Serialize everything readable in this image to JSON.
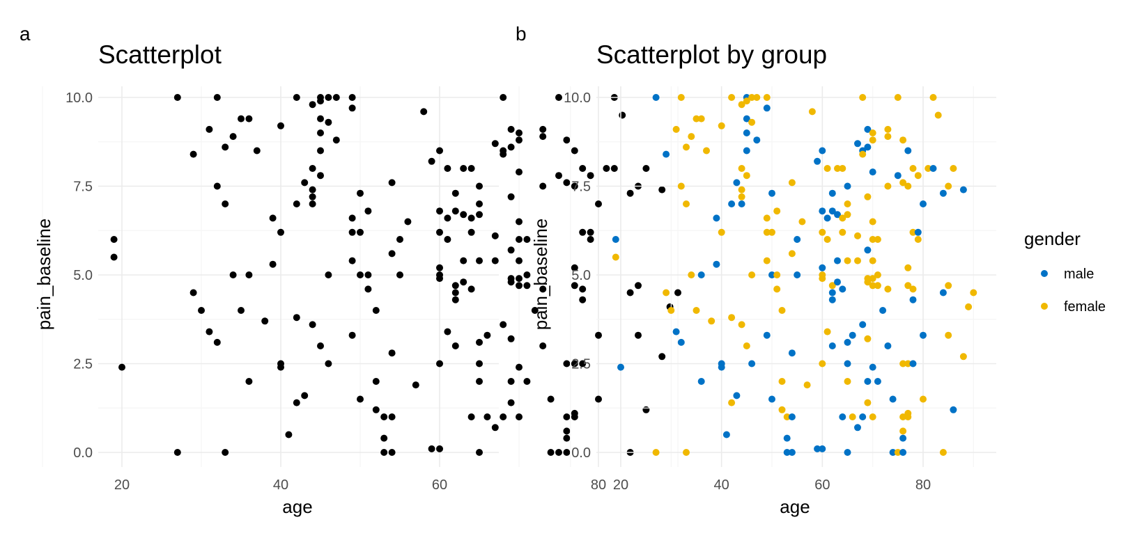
{
  "panels": {
    "a": {
      "tag": "a",
      "title": "Scatterplot"
    },
    "b": {
      "tag": "b",
      "title": "Scatterplot by group"
    }
  },
  "legend": {
    "title": "gender",
    "entries": [
      {
        "label": "male",
        "color": "#0072C6"
      },
      {
        "label": "female",
        "color": "#F0B800"
      }
    ]
  },
  "chart_data": [
    {
      "type": "scatter",
      "title": "Scatterplot",
      "xlabel": "age",
      "ylabel": "pain_baseline",
      "xlim": [
        14,
        92
      ],
      "ylim": [
        -0.6,
        10.6
      ],
      "xticks": [
        20,
        40,
        60,
        80
      ],
      "yticks": [
        0.0,
        2.5,
        5.0,
        7.5,
        10.0
      ],
      "xtick_labels": [
        "20",
        "40",
        "60",
        "80"
      ],
      "ytick_labels": [
        "0.0",
        "2.5",
        "5.0",
        "7.5",
        "10.0"
      ],
      "grid": true,
      "point_color": "#000000",
      "points": [
        [
          19,
          6.0,
          "m"
        ],
        [
          19,
          5.5,
          "f"
        ],
        [
          20,
          2.4,
          "m"
        ],
        [
          27,
          10.0,
          "m"
        ],
        [
          27,
          0.0,
          "f"
        ],
        [
          29,
          8.4,
          "m"
        ],
        [
          29,
          4.5,
          "f"
        ],
        [
          30,
          4.0,
          "f"
        ],
        [
          31,
          9.1,
          "f"
        ],
        [
          31,
          3.4,
          "m"
        ],
        [
          32,
          10.0,
          "f"
        ],
        [
          32,
          7.5,
          "f"
        ],
        [
          32,
          3.1,
          "m"
        ],
        [
          33,
          8.6,
          "f"
        ],
        [
          33,
          7.0,
          "f"
        ],
        [
          33,
          0.0,
          "f"
        ],
        [
          34,
          8.9,
          "f"
        ],
        [
          34,
          5.0,
          "f"
        ],
        [
          35,
          9.4,
          "f"
        ],
        [
          35,
          4.0,
          "f"
        ],
        [
          36,
          9.4,
          "f"
        ],
        [
          36,
          5.0,
          "m"
        ],
        [
          36,
          2.0,
          "m"
        ],
        [
          37,
          8.5,
          "f"
        ],
        [
          38,
          3.7,
          "f"
        ],
        [
          39,
          6.6,
          "m"
        ],
        [
          39,
          5.3,
          "m"
        ],
        [
          40,
          9.2,
          "f"
        ],
        [
          40,
          6.2,
          "f"
        ],
        [
          40,
          2.5,
          "m"
        ],
        [
          40,
          2.4,
          "m"
        ],
        [
          41,
          0.5,
          "m"
        ],
        [
          42,
          10.0,
          "f"
        ],
        [
          42,
          7.0,
          "m"
        ],
        [
          42,
          3.8,
          "f"
        ],
        [
          42,
          1.4,
          "f"
        ],
        [
          43,
          7.6,
          "m"
        ],
        [
          43,
          1.6,
          "m"
        ],
        [
          44,
          9.8,
          "f"
        ],
        [
          44,
          7.4,
          "f"
        ],
        [
          44,
          7.2,
          "f"
        ],
        [
          44,
          8.0,
          "f"
        ],
        [
          44,
          3.6,
          "f"
        ],
        [
          44,
          7.0,
          "m"
        ],
        [
          45,
          10.0,
          "m"
        ],
        [
          45,
          9.9,
          "f"
        ],
        [
          45,
          9.4,
          "m"
        ],
        [
          45,
          9.0,
          "m"
        ],
        [
          45,
          8.5,
          "m"
        ],
        [
          45,
          7.8,
          "f"
        ],
        [
          45,
          3.0,
          "f"
        ],
        [
          46,
          10.0,
          "f"
        ],
        [
          46,
          9.3,
          "f"
        ],
        [
          46,
          5.0,
          "f"
        ],
        [
          46,
          2.5,
          "m"
        ],
        [
          47,
          10.0,
          "f"
        ],
        [
          47,
          8.8,
          "m"
        ],
        [
          49,
          10.0,
          "f"
        ],
        [
          49,
          9.7,
          "m"
        ],
        [
          49,
          6.6,
          "f"
        ],
        [
          49,
          6.2,
          "f"
        ],
        [
          49,
          5.4,
          "f"
        ],
        [
          49,
          3.3,
          "m"
        ],
        [
          50,
          7.3,
          "m"
        ],
        [
          50,
          6.2,
          "f"
        ],
        [
          50,
          5.0,
          "m"
        ],
        [
          50,
          1.5,
          "m"
        ],
        [
          51,
          6.8,
          "f"
        ],
        [
          51,
          5.0,
          "f"
        ],
        [
          51,
          4.6,
          "f"
        ],
        [
          52,
          4.0,
          "f"
        ],
        [
          52,
          2.0,
          "f"
        ],
        [
          52,
          1.2,
          "f"
        ],
        [
          53,
          1.0,
          "f"
        ],
        [
          53,
          0.4,
          "m"
        ],
        [
          53,
          0.0,
          "m"
        ],
        [
          54,
          7.6,
          "f"
        ],
        [
          54,
          5.6,
          "f"
        ],
        [
          54,
          2.8,
          "m"
        ],
        [
          54,
          1.0,
          "m"
        ],
        [
          54,
          0.0,
          "m"
        ],
        [
          55,
          6.0,
          "m"
        ],
        [
          55,
          5.0,
          "m"
        ],
        [
          56,
          6.5,
          "f"
        ],
        [
          57,
          1.9,
          "f"
        ],
        [
          58,
          9.6,
          "f"
        ],
        [
          59,
          8.2,
          "m"
        ],
        [
          59,
          0.1,
          "m"
        ],
        [
          60,
          8.5,
          "m"
        ],
        [
          60,
          6.8,
          "m"
        ],
        [
          60,
          6.2,
          "f"
        ],
        [
          60,
          5.2,
          "m"
        ],
        [
          60,
          5.0,
          "f"
        ],
        [
          60,
          4.9,
          "f"
        ],
        [
          60,
          2.5,
          "f"
        ],
        [
          60,
          0.1,
          "m"
        ],
        [
          61,
          8.0,
          "f"
        ],
        [
          61,
          6.6,
          "m"
        ],
        [
          61,
          6.0,
          "f"
        ],
        [
          61,
          3.4,
          "f"
        ],
        [
          62,
          7.3,
          "m"
        ],
        [
          62,
          6.8,
          "m"
        ],
        [
          62,
          4.7,
          "f"
        ],
        [
          62,
          4.5,
          "m"
        ],
        [
          62,
          4.3,
          "m"
        ],
        [
          62,
          3.0,
          "m"
        ],
        [
          63,
          8.0,
          "f"
        ],
        [
          63,
          6.7,
          "m"
        ],
        [
          63,
          5.4,
          "m"
        ],
        [
          63,
          4.8,
          "m"
        ],
        [
          64,
          8.0,
          "f"
        ],
        [
          64,
          6.6,
          "f"
        ],
        [
          64,
          6.2,
          "f"
        ],
        [
          64,
          4.6,
          "m"
        ],
        [
          64,
          1.0,
          "m"
        ],
        [
          65,
          7.5,
          "m"
        ],
        [
          65,
          7.0,
          "f"
        ],
        [
          65,
          6.7,
          "f"
        ],
        [
          65,
          5.4,
          "f"
        ],
        [
          65,
          3.1,
          "m"
        ],
        [
          65,
          2.5,
          "m"
        ],
        [
          65,
          2.0,
          "f"
        ],
        [
          65,
          0.0,
          "m"
        ],
        [
          66,
          1.0,
          "f"
        ],
        [
          66,
          3.3,
          "m"
        ],
        [
          67,
          8.7,
          "m"
        ],
        [
          67,
          6.1,
          "f"
        ],
        [
          67,
          5.4,
          "f"
        ],
        [
          67,
          0.7,
          "m"
        ],
        [
          68,
          10.0,
          "f"
        ],
        [
          68,
          8.5,
          "m"
        ],
        [
          68,
          8.4,
          "f"
        ],
        [
          68,
          3.6,
          "m"
        ],
        [
          68,
          1.0,
          "m"
        ],
        [
          69,
          9.1,
          "m"
        ],
        [
          69,
          8.6,
          "m"
        ],
        [
          69,
          7.2,
          "f"
        ],
        [
          69,
          5.7,
          "m"
        ],
        [
          69,
          4.9,
          "f"
        ],
        [
          69,
          4.8,
          "f"
        ],
        [
          69,
          3.2,
          "f"
        ],
        [
          69,
          2.0,
          "m"
        ],
        [
          69,
          1.4,
          "f"
        ],
        [
          70,
          9.0,
          "f"
        ],
        [
          70,
          8.8,
          "f"
        ],
        [
          70,
          7.9,
          "m"
        ],
        [
          70,
          6.5,
          "f"
        ],
        [
          70,
          6.0,
          "f"
        ],
        [
          70,
          5.4,
          "f"
        ],
        [
          70,
          4.9,
          "f"
        ],
        [
          70,
          4.7,
          "f"
        ],
        [
          70,
          2.4,
          "m"
        ],
        [
          70,
          1.0,
          "f"
        ],
        [
          71,
          6.0,
          "f"
        ],
        [
          71,
          5.0,
          "f"
        ],
        [
          71,
          4.7,
          "f"
        ],
        [
          71,
          2.0,
          "m"
        ],
        [
          72,
          4.0,
          "m"
        ],
        [
          73,
          9.1,
          "f"
        ],
        [
          73,
          8.9,
          "f"
        ],
        [
          73,
          7.5,
          "f"
        ],
        [
          73,
          4.6,
          "f"
        ],
        [
          73,
          3.0,
          "m"
        ],
        [
          74,
          1.5,
          "m"
        ],
        [
          74,
          0.0,
          "m"
        ],
        [
          75,
          10.0,
          "f"
        ],
        [
          75,
          7.8,
          "m"
        ],
        [
          75,
          0.0,
          "f"
        ],
        [
          76,
          8.8,
          "f"
        ],
        [
          76,
          7.6,
          "f"
        ],
        [
          76,
          2.5,
          "f"
        ],
        [
          76,
          1.0,
          "f"
        ],
        [
          76,
          0.6,
          "f"
        ],
        [
          76,
          0.4,
          "m"
        ],
        [
          76,
          0.0,
          "m"
        ],
        [
          77,
          8.5,
          "m"
        ],
        [
          77,
          7.5,
          "f"
        ],
        [
          77,
          5.2,
          "f"
        ],
        [
          77,
          4.7,
          "f"
        ],
        [
          77,
          2.5,
          "f"
        ],
        [
          77,
          1.1,
          "f"
        ],
        [
          77,
          1.0,
          "f"
        ],
        [
          78,
          8.0,
          "f"
        ],
        [
          78,
          6.2,
          "f"
        ],
        [
          78,
          4.6,
          "f"
        ],
        [
          78,
          4.3,
          "m"
        ],
        [
          78,
          2.5,
          "m"
        ],
        [
          79,
          7.8,
          "f"
        ],
        [
          79,
          6.2,
          "m"
        ],
        [
          79,
          6.0,
          "f"
        ],
        [
          80,
          7.0,
          "m"
        ],
        [
          80,
          3.3,
          "m"
        ],
        [
          80,
          1.5,
          "f"
        ],
        [
          81,
          8.0,
          "f"
        ],
        [
          82,
          10.0,
          "f"
        ],
        [
          82,
          8.0,
          "m"
        ],
        [
          83,
          9.5,
          "f"
        ],
        [
          84,
          7.3,
          "m"
        ],
        [
          84,
          4.5,
          "m"
        ],
        [
          84,
          0.0,
          "f"
        ],
        [
          85,
          7.5,
          "f"
        ],
        [
          85,
          4.7,
          "f"
        ],
        [
          85,
          3.3,
          "f"
        ],
        [
          86,
          8.0,
          "f"
        ],
        [
          86,
          1.2,
          "m"
        ],
        [
          88,
          7.4,
          "m"
        ],
        [
          88,
          2.7,
          "f"
        ],
        [
          89,
          4.1,
          "f"
        ],
        [
          90,
          4.5,
          "f"
        ]
      ]
    },
    {
      "type": "scatter",
      "title": "Scatterplot by group",
      "xlabel": "age",
      "ylabel": "pain_baseline",
      "xlim": [
        14,
        92
      ],
      "ylim": [
        -0.6,
        10.6
      ],
      "xticks": [
        20,
        40,
        60,
        80
      ],
      "yticks": [
        0.0,
        2.5,
        5.0,
        7.5,
        10.0
      ],
      "xtick_labels": [
        "20",
        "40",
        "60",
        "80"
      ],
      "ytick_labels": [
        "0.0",
        "2.5",
        "5.0",
        "7.5",
        "10.0"
      ],
      "grid": true,
      "color_by": "gender",
      "groups": {
        "m": "male",
        "f": "female"
      },
      "legend_position": "right",
      "points_ref": "same as panel a"
    }
  ]
}
